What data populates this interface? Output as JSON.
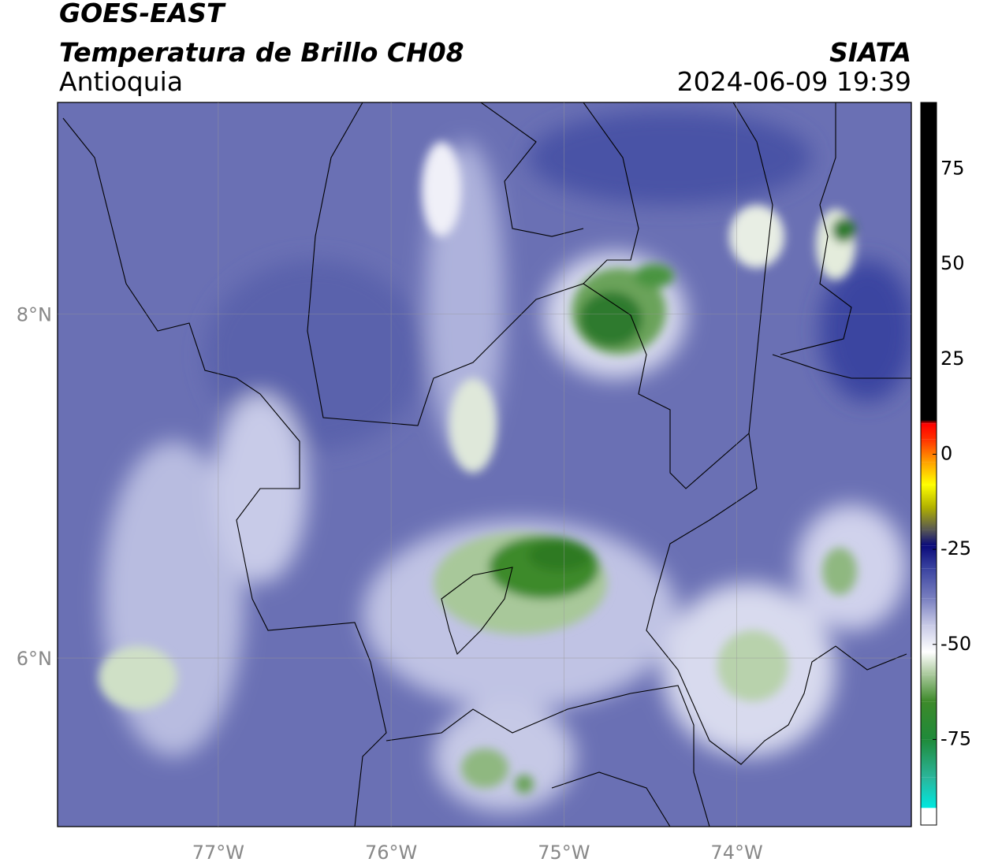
{
  "header": {
    "title": "GOES-EAST",
    "subtitle": "Temperatura de Brillo CH08",
    "region": "Antioquia",
    "source": "SIATA",
    "datetime": "2024-06-09 19:39"
  },
  "map": {
    "xlim": [
      -77.93,
      -72.99
    ],
    "ylim": [
      5.02,
      9.23
    ],
    "xticks": [
      {
        "value": -77,
        "label": "77°W"
      },
      {
        "value": -76,
        "label": "76°W"
      },
      {
        "value": -75,
        "label": "75°W"
      },
      {
        "value": -74,
        "label": "74°W"
      }
    ],
    "yticks": [
      {
        "value": 8,
        "label": "8°N"
      },
      {
        "value": 6,
        "label": "6°N"
      }
    ],
    "grid": true
  },
  "colorbar": {
    "lim": [
      -97.5,
      92.5
    ],
    "ticks": [
      75,
      50,
      25,
      0,
      -25,
      -50,
      -75
    ],
    "stops": [
      {
        "value": -93,
        "color": "#00e8e0"
      },
      {
        "value": -85,
        "color": "#2bb59a"
      },
      {
        "value": -75,
        "color": "#1f8a3a"
      },
      {
        "value": -65,
        "color": "#3d8a2a"
      },
      {
        "value": -58,
        "color": "#a8c89a"
      },
      {
        "value": -52,
        "color": "#ffffff"
      },
      {
        "value": -45,
        "color": "#c8cae6"
      },
      {
        "value": -38,
        "color": "#7a80c0"
      },
      {
        "value": -30,
        "color": "#3a43a0"
      },
      {
        "value": -24,
        "color": "#0a0a7a"
      },
      {
        "value": -20,
        "color": "#555555"
      },
      {
        "value": -14,
        "color": "#b0b000"
      },
      {
        "value": -8,
        "color": "#ffff00"
      },
      {
        "value": -2,
        "color": "#ffa000"
      },
      {
        "value": 4,
        "color": "#ff3000"
      },
      {
        "value": 8,
        "color": "#ff0000"
      },
      {
        "value": 9,
        "color": "#000000"
      },
      {
        "value": 92.5,
        "color": "#000000"
      }
    ]
  }
}
